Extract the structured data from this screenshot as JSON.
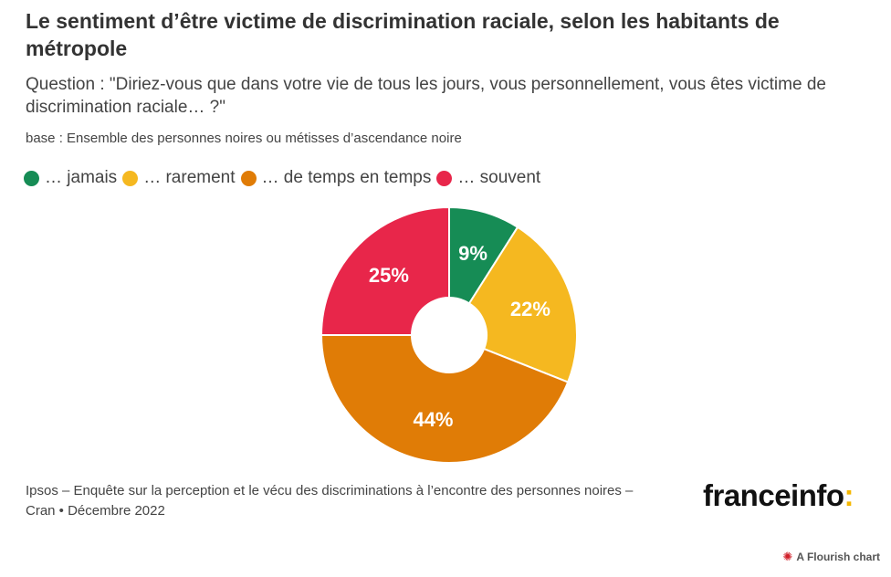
{
  "title": "Le sentiment d’être victime de discrimination raciale, selon les habitants de métropole",
  "subtitle": "Question : \"Diriez-vous que dans votre vie de tous les jours, vous personnellement, vous êtes victime de discrimination raciale… ?\"",
  "base_note": "base : Ensemble des personnes noires ou métisses d’ascendance noire",
  "source": "Ipsos – Enquête sur la perception et le vécu des discriminations à l’encontre des personnes noires – Cran • Décembre 2022",
  "logo": {
    "text": "franceinfo",
    "accent": ":"
  },
  "flourish": {
    "text": "A Flourish chart",
    "icon": "flourish-burst-icon"
  },
  "chart_data": {
    "type": "pie",
    "variant": "donut",
    "categories": [
      "… jamais",
      "… rarement",
      "… de temps en temps",
      "… souvent"
    ],
    "values": [
      9,
      22,
      44,
      25
    ],
    "labels": [
      "9%",
      "22%",
      "44%",
      "25%"
    ],
    "colors": [
      "#168c55",
      "#f5b820",
      "#e07c06",
      "#e8264a"
    ],
    "legend_position": "top-left"
  }
}
